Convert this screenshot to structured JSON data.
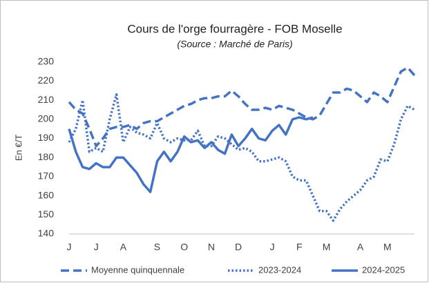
{
  "chart_data": {
    "type": "line",
    "title": "Cours de l'orge fourragère - FOB Moselle",
    "subtitle": "(Source : Marché de Paris)",
    "y_label": "En €/T",
    "categories": [
      "J",
      null,
      null,
      null,
      "J",
      null,
      null,
      null,
      "A",
      null,
      null,
      null,
      null,
      "S",
      null,
      null,
      null,
      "O",
      null,
      null,
      null,
      "N",
      null,
      null,
      null,
      "D",
      null,
      null,
      null,
      null,
      "J",
      null,
      null,
      null,
      "F",
      null,
      null,
      null,
      "M",
      null,
      null,
      null,
      null,
      "A",
      null,
      null,
      null,
      "M",
      null,
      null,
      null,
      null
    ],
    "series": [
      {
        "name": "Moyenne quinquennale",
        "color": "#4472c4",
        "dash": "dashed",
        "values": [
          209,
          205,
          203,
          195,
          186,
          190,
          195,
          196,
          196,
          197,
          195,
          198,
          199,
          199,
          201,
          203,
          205,
          207,
          208,
          210,
          211,
          211,
          212,
          212,
          215,
          212,
          208,
          205,
          205,
          206,
          205,
          207,
          206,
          205,
          203,
          201,
          200,
          202,
          208,
          214,
          214,
          216,
          215,
          212,
          209,
          214,
          212,
          209,
          217,
          225,
          227,
          223
        ]
      },
      {
        "name": "2023-2024",
        "color": "#4472c4",
        "dash": "dotted",
        "values": [
          188,
          195,
          210,
          183,
          185,
          183,
          200,
          213,
          188,
          196,
          193,
          192,
          190,
          198,
          190,
          188,
          190,
          189,
          189,
          194,
          186,
          186,
          191,
          190,
          187,
          184,
          185,
          183,
          178,
          178,
          179,
          180,
          178,
          170,
          168,
          168,
          160,
          152,
          152,
          147,
          153,
          157,
          160,
          163,
          168,
          170,
          179,
          178,
          187,
          200,
          207,
          205
        ]
      },
      {
        "name": "2024-2025",
        "color": "#4472c4",
        "dash": "solid",
        "values": [
          195,
          183,
          175,
          174,
          177,
          175,
          175,
          180,
          180,
          176,
          172,
          166,
          162,
          178,
          183,
          178,
          183,
          191,
          188,
          189,
          185,
          188,
          184,
          182,
          192,
          186,
          190,
          195,
          190,
          189,
          194,
          197,
          192,
          200,
          201,
          200,
          201,
          null,
          null,
          null,
          null,
          null,
          null,
          null,
          null,
          null,
          null,
          null,
          null,
          null,
          null,
          null
        ]
      }
    ],
    "ylim": [
      140,
      232
    ],
    "yticks": [
      140,
      150,
      160,
      170,
      180,
      190,
      200,
      210,
      220,
      230
    ],
    "grid": false,
    "legend": "bottom"
  }
}
